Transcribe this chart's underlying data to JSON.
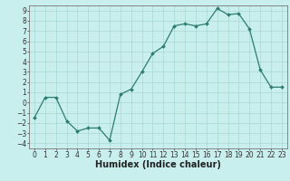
{
  "x": [
    0,
    1,
    2,
    3,
    4,
    5,
    6,
    7,
    8,
    9,
    10,
    11,
    12,
    13,
    14,
    15,
    16,
    17,
    18,
    19,
    20,
    21,
    22,
    23
  ],
  "y": [
    -1.5,
    0.5,
    0.5,
    -1.8,
    -2.8,
    -2.5,
    -2.5,
    -3.7,
    0.8,
    1.3,
    3.0,
    4.8,
    5.5,
    7.5,
    7.7,
    7.5,
    7.7,
    9.2,
    8.6,
    8.7,
    7.2,
    3.2,
    1.5,
    1.5
  ],
  "title": "",
  "xlabel": "Humidex (Indice chaleur)",
  "ylabel": "",
  "ylim": [
    -4.5,
    9.5
  ],
  "xlim": [
    -0.5,
    23.5
  ],
  "yticks": [
    -4,
    -3,
    -2,
    -1,
    0,
    1,
    2,
    3,
    4,
    5,
    6,
    7,
    8,
    9
  ],
  "xticks": [
    0,
    1,
    2,
    3,
    4,
    5,
    6,
    7,
    8,
    9,
    10,
    11,
    12,
    13,
    14,
    15,
    16,
    17,
    18,
    19,
    20,
    21,
    22,
    23
  ],
  "line_color": "#2e7d6e",
  "marker_color": "#2e7d6e",
  "bg_color": "#c8eeee",
  "grid_color": "#a8d8d0",
  "axis_color": "#777777",
  "tick_label_fontsize": 5.5,
  "xlabel_fontsize": 7.0
}
